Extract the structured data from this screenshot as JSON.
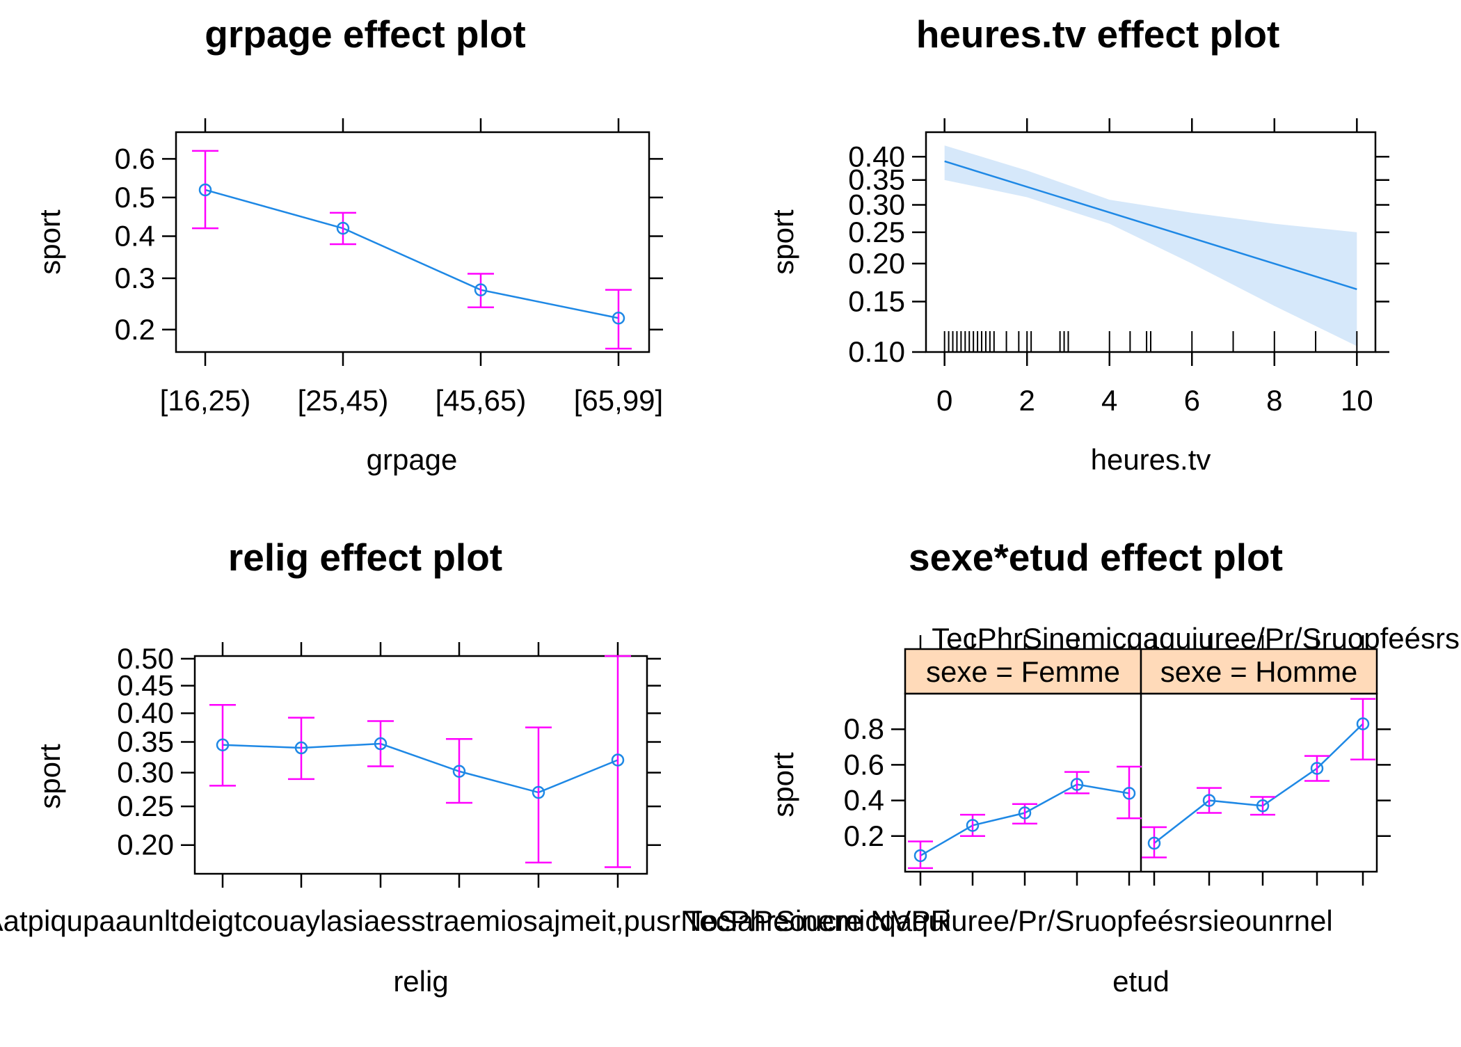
{
  "colors": {
    "point": "#1E88E5",
    "errorbar": "#FF00FF",
    "band": "#D6E8FA",
    "strip": "#FFDAB9"
  },
  "chart_data": [
    {
      "type": "line",
      "title": "grpage effect plot",
      "xlabel": "grpage",
      "ylabel": "sport",
      "scale": "logit",
      "categories": [
        "[16,25)",
        "[25,45)",
        "[45,65)",
        "[65,99]"
      ],
      "values": [
        0.52,
        0.42,
        0.275,
        0.22
      ],
      "lower": [
        0.42,
        0.38,
        0.24,
        0.17
      ],
      "upper": [
        0.62,
        0.46,
        0.31,
        0.275
      ],
      "yticks": [
        0.2,
        0.3,
        0.4,
        0.5,
        0.6
      ],
      "ytick_labels": [
        "0.2",
        "0.3",
        "0.4",
        "0.5",
        "0.6"
      ],
      "ylim": [
        0.165,
        0.665
      ]
    },
    {
      "type": "line",
      "title": "heures.tv effect plot",
      "xlabel": "heures.tv",
      "ylabel": "sport",
      "scale": "logit",
      "x": [
        0,
        10
      ],
      "y": [
        0.39,
        0.165
      ],
      "band_x": [
        0,
        2,
        4,
        6,
        8,
        10
      ],
      "band_lower": [
        0.35,
        0.315,
        0.265,
        0.2,
        0.145,
        0.105
      ],
      "band_upper": [
        0.425,
        0.37,
        0.31,
        0.285,
        0.265,
        0.25
      ],
      "xticks": [
        0,
        2,
        4,
        6,
        8,
        10
      ],
      "xtick_labels": [
        "0",
        "2",
        "4",
        "6",
        "8",
        "10"
      ],
      "yticks": [
        0.1,
        0.15,
        0.2,
        0.25,
        0.3,
        0.35,
        0.4
      ],
      "ytick_labels": [
        "0.10",
        "0.15",
        "0.20",
        "0.25",
        "0.30",
        "0.35",
        "0.40"
      ],
      "xlim": [
        -0.45,
        10.45
      ],
      "ylim": [
        0.1,
        0.455
      ],
      "rug": [
        0,
        0.1,
        0.2,
        0.3,
        0.4,
        0.5,
        0.6,
        0.7,
        0.8,
        0.9,
        1,
        1.1,
        1.2,
        1.5,
        1.8,
        2,
        2.1,
        2.8,
        2.9,
        3,
        4,
        4.5,
        4.9,
        5,
        6,
        7,
        8,
        9,
        10
      ]
    },
    {
      "type": "line",
      "title": "relig effect plot",
      "xlabel": "relig",
      "ylabel": "sport",
      "scale": "logit",
      "categories": [
        "Pratiquant regulier",
        "Pratiquant occasionnel",
        "Appartenance sans pratique",
        "Ni croyance ni appartenance",
        "Rejet",
        "NSP ou NVPR"
      ],
      "category_label_text": "PratiqPAatpiqupaaunltdeigtcouaylasiaesstraemiosajmeit,pusrNoSaPeoucre NVPR",
      "values": [
        0.345,
        0.34,
        0.347,
        0.302,
        0.27,
        0.32
      ],
      "lower": [
        0.28,
        0.29,
        0.31,
        0.255,
        0.18,
        0.175
      ],
      "upper": [
        0.415,
        0.392,
        0.386,
        0.355,
        0.375,
        0.505
      ],
      "yticks": [
        0.2,
        0.25,
        0.3,
        0.35,
        0.4,
        0.45,
        0.5
      ],
      "ytick_labels": [
        "0.20",
        "0.25",
        "0.30",
        "0.35",
        "0.40",
        "0.45",
        "0.50"
      ],
      "ylim": [
        0.168,
        0.505
      ]
    },
    {
      "type": "line",
      "title": "sexe*etud effect plot",
      "xlabel": "etud",
      "ylabel": "sport",
      "scale": "logit",
      "categories": [
        "Primaire",
        "Secondaire",
        "Technique/Professionnel",
        "Superieur",
        "Manquant"
      ],
      "category_label_text": "TecPhrSinemicqaquiuree/Pr/Sruopfeésrsieounrnel",
      "panels": [
        {
          "strip": "sexe = Femme",
          "values": [
            0.09,
            0.26,
            0.33,
            0.49,
            0.44
          ],
          "lower": [
            0.02,
            0.2,
            0.27,
            0.44,
            0.3
          ],
          "upper": [
            0.17,
            0.32,
            0.38,
            0.56,
            0.59
          ]
        },
        {
          "strip": "sexe = Homme",
          "values": [
            0.16,
            0.4,
            0.37,
            0.58,
            0.83
          ],
          "lower": [
            0.08,
            0.33,
            0.32,
            0.51,
            0.63
          ],
          "upper": [
            0.25,
            0.47,
            0.42,
            0.65,
            0.97
          ]
        }
      ],
      "yticks": [
        0.2,
        0.4,
        0.6,
        0.8
      ],
      "ytick_labels": [
        "0.2",
        "0.4",
        "0.6",
        "0.8"
      ],
      "ylim": [
        0.0,
        1.0
      ]
    }
  ]
}
